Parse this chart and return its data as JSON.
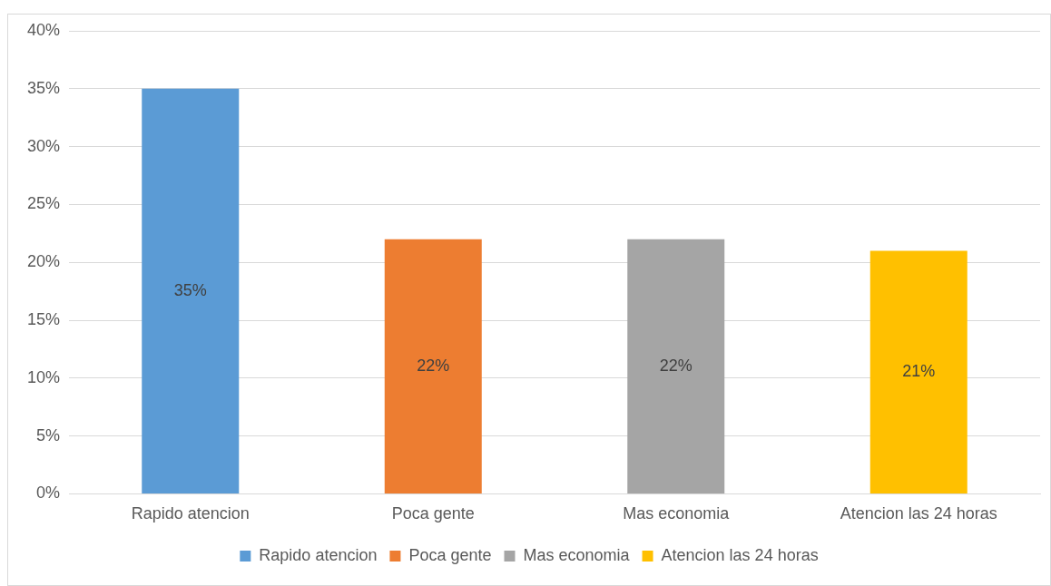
{
  "chart_data": {
    "type": "bar",
    "categories": [
      "Rapido atencion",
      "Poca gente",
      "Mas economia",
      "Atencion las 24 horas"
    ],
    "series": [
      {
        "name": "Rapido atencion",
        "color": "#5b9bd5",
        "values": [
          35,
          null,
          null,
          null
        ],
        "value_labels": [
          "35%",
          null,
          null,
          null
        ]
      },
      {
        "name": "Poca gente",
        "color": "#ed7d31",
        "values": [
          null,
          22,
          null,
          null
        ],
        "value_labels": [
          null,
          "22%",
          null,
          null
        ]
      },
      {
        "name": "Mas economia",
        "color": "#a5a5a5",
        "values": [
          null,
          null,
          22,
          null
        ],
        "value_labels": [
          null,
          null,
          "22%",
          null
        ]
      },
      {
        "name": "Atencion las 24 horas",
        "color": "#ffc000",
        "values": [
          null,
          null,
          null,
          21
        ],
        "value_labels": [
          null,
          null,
          null,
          "21%"
        ]
      }
    ],
    "ylim": [
      0,
      40
    ],
    "yticks": [
      {
        "value": 0,
        "label": "0%"
      },
      {
        "value": 5,
        "label": "5%"
      },
      {
        "value": 10,
        "label": "10%"
      },
      {
        "value": 15,
        "label": "15%"
      },
      {
        "value": 20,
        "label": "20%"
      },
      {
        "value": 25,
        "label": "25%"
      },
      {
        "value": 30,
        "label": "30%"
      },
      {
        "value": 35,
        "label": "35%"
      },
      {
        "value": 40,
        "label": "40%"
      }
    ],
    "grid": "y",
    "legend": "bottom"
  }
}
